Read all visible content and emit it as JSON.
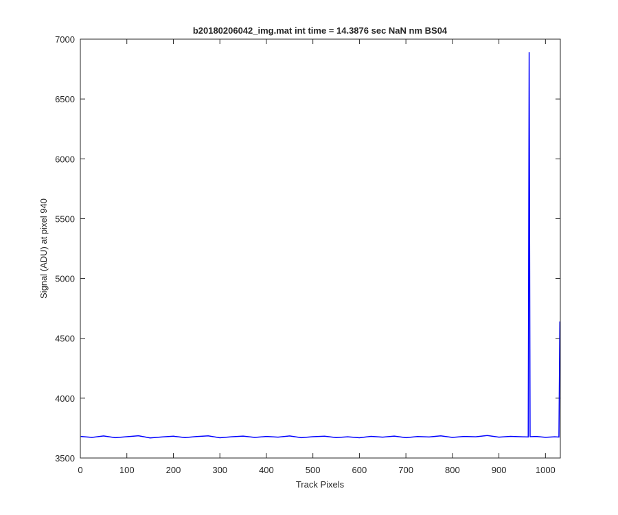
{
  "chart_data": {
    "type": "line",
    "title": "b20180206042_img.mat int time = 14.3876 sec  NaN nm BS04",
    "x_label": "Track Pixels",
    "y_label": "Signal (ADU) at pixel 940",
    "x": [
      1,
      25,
      50,
      75,
      100,
      125,
      150,
      175,
      200,
      225,
      250,
      275,
      300,
      325,
      350,
      375,
      400,
      425,
      450,
      475,
      500,
      525,
      550,
      575,
      600,
      625,
      650,
      675,
      700,
      725,
      750,
      775,
      800,
      825,
      850,
      875,
      900,
      925,
      950,
      963,
      965,
      967,
      980,
      1000,
      1020,
      1029,
      1031
    ],
    "series": [
      {
        "name": "Signal",
        "color": "#0000ff",
        "values": [
          3680,
          3672,
          3684,
          3670,
          3678,
          3686,
          3668,
          3676,
          3682,
          3671,
          3679,
          3685,
          3669,
          3677,
          3683,
          3672,
          3680,
          3674,
          3684,
          3670,
          3678,
          3682,
          3671,
          3677,
          3669,
          3681,
          3674,
          3683,
          3670,
          3679,
          3676,
          3685,
          3672,
          3680,
          3677,
          3688,
          3674,
          3681,
          3677,
          3676,
          6890,
          3678,
          3680,
          3673,
          3677,
          3675,
          4640
        ]
      }
    ],
    "xlim": [
      0,
      1032
    ],
    "ylim": [
      3500,
      7000
    ],
    "xticks": [
      0,
      100,
      200,
      300,
      400,
      500,
      600,
      700,
      800,
      900,
      1000
    ],
    "yticks": [
      3500,
      4000,
      4500,
      5000,
      5500,
      6000,
      6500,
      7000
    ]
  }
}
